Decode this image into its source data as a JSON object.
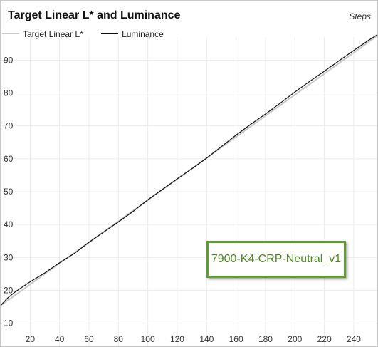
{
  "chart_data": {
    "type": "line",
    "title": "Target Linear L* and Luminance",
    "corner_label": "Steps",
    "annotation": "7900-K4-CRP-Neutral_v1",
    "xlabel": "",
    "ylabel": "",
    "xlim": [
      0,
      256
    ],
    "ylim": [
      3,
      97
    ],
    "x_ticks": [
      20,
      40,
      60,
      80,
      100,
      120,
      140,
      160,
      180,
      200,
      220,
      240
    ],
    "y_ticks": [
      10,
      20,
      30,
      40,
      50,
      60,
      70,
      80,
      90
    ],
    "grid": true,
    "legend_position": "top-left",
    "series": [
      {
        "name": "Target Linear L*",
        "color": "#c8c8c8",
        "x": [
          0,
          256
        ],
        "y": [
          15.4,
          97.4
        ]
      },
      {
        "name": "Luminance",
        "color": "#111111",
        "x": [
          0,
          5,
          10,
          20,
          30,
          40,
          50,
          60,
          70,
          80,
          90,
          100,
          110,
          120,
          130,
          140,
          150,
          160,
          170,
          180,
          190,
          200,
          210,
          220,
          230,
          240,
          250,
          256
        ],
        "y": [
          15.4,
          17.8,
          19.6,
          22.6,
          25.3,
          28.4,
          31.2,
          34.6,
          37.7,
          40.8,
          44.0,
          47.5,
          50.7,
          53.9,
          57.0,
          60.2,
          63.7,
          67.2,
          70.5,
          73.6,
          76.9,
          80.3,
          83.5,
          86.6,
          89.8,
          92.9,
          96.0,
          97.7
        ]
      }
    ]
  }
}
